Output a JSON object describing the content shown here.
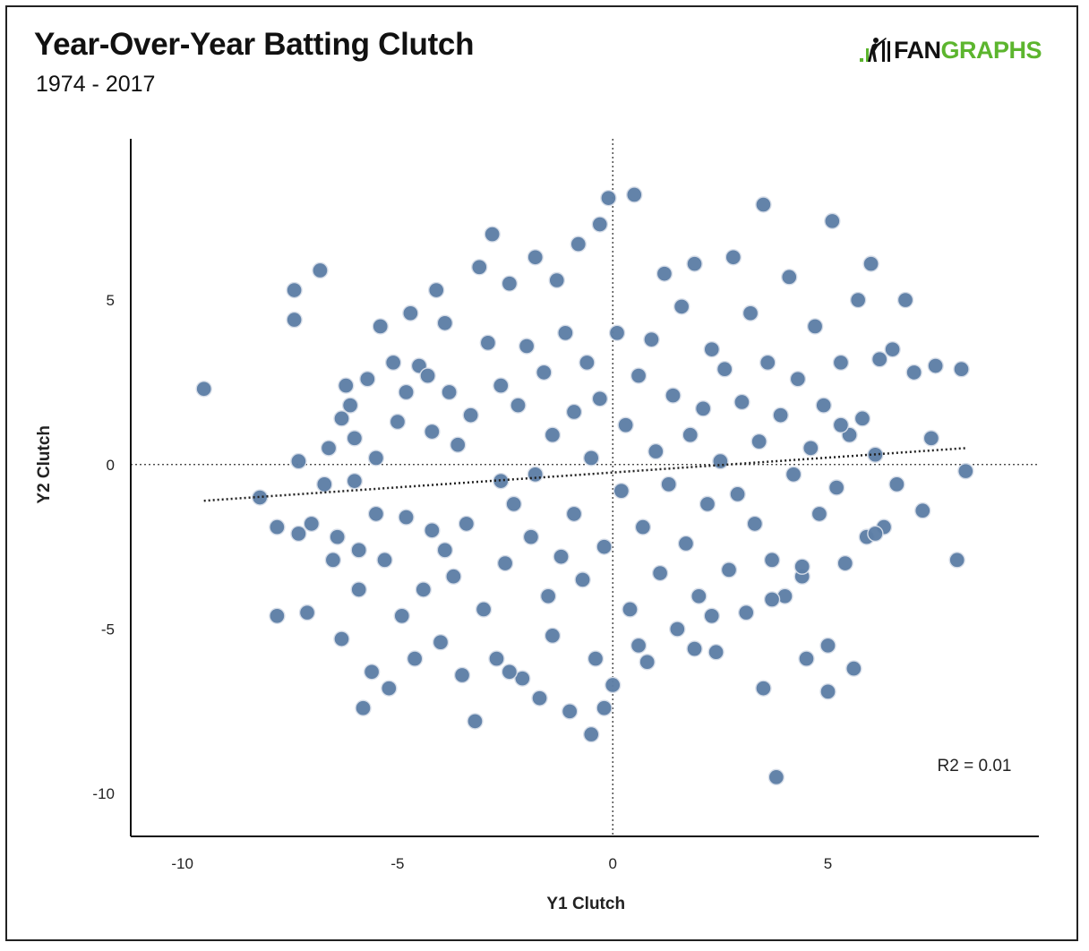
{
  "header": {
    "title": "Year-Over-Year Batting Clutch",
    "subtitle": "1974 - 2017",
    "logo_part1": "FAN",
    "logo_part2": "GRAPHS"
  },
  "colors": {
    "point_fill": "#5e7fa6",
    "point_stroke": "#d6dde8",
    "logo_green": "#5cb52e"
  },
  "chart_data": {
    "type": "scatter",
    "title": "Year-Over-Year Batting Clutch",
    "subtitle": "1974 - 2017",
    "xlabel": "Y1 Clutch",
    "ylabel": "Y2 Clutch",
    "xlim": [
      -11.2,
      9.9
    ],
    "ylim": [
      -11.3,
      9.9
    ],
    "xticks": [
      -10,
      -5,
      0,
      5
    ],
    "yticks": [
      5,
      0,
      -5,
      -10
    ],
    "annotation": "R2 = 0.01",
    "trendline": {
      "x": [
        -9.5,
        8.2
      ],
      "y": [
        -1.1,
        0.5
      ]
    },
    "grid": false,
    "series": [
      {
        "points": [
          [
            -9.5,
            2.3
          ],
          [
            -8.2,
            -1.0
          ],
          [
            -7.8,
            -4.6
          ],
          [
            -7.8,
            -1.9
          ],
          [
            -7.4,
            5.3
          ],
          [
            -7.4,
            4.4
          ],
          [
            -7.3,
            0.1
          ],
          [
            -7.3,
            -2.1
          ],
          [
            -7.1,
            -4.5
          ],
          [
            -7.0,
            -1.8
          ],
          [
            -6.8,
            5.9
          ],
          [
            -6.7,
            -0.6
          ],
          [
            -6.5,
            -2.9
          ],
          [
            -6.4,
            -2.2
          ],
          [
            -6.3,
            1.4
          ],
          [
            -6.3,
            -5.3
          ],
          [
            -6.2,
            2.4
          ],
          [
            -6.1,
            1.8
          ],
          [
            -6.0,
            0.8
          ],
          [
            -5.9,
            -2.6
          ],
          [
            -5.9,
            -3.8
          ],
          [
            -5.8,
            -7.4
          ],
          [
            -5.7,
            2.6
          ],
          [
            -5.6,
            -6.3
          ],
          [
            -5.5,
            -1.5
          ],
          [
            -5.4,
            4.2
          ],
          [
            -5.3,
            -2.9
          ],
          [
            -5.2,
            -6.8
          ],
          [
            -5.1,
            3.1
          ],
          [
            -5.0,
            1.3
          ],
          [
            -4.9,
            -4.6
          ],
          [
            -4.8,
            2.2
          ],
          [
            -4.7,
            4.6
          ],
          [
            -4.6,
            -5.9
          ],
          [
            -4.5,
            3.0
          ],
          [
            -4.4,
            -3.8
          ],
          [
            -4.3,
            2.7
          ],
          [
            -4.2,
            1.0
          ],
          [
            -4.2,
            -2.0
          ],
          [
            -4.1,
            5.3
          ],
          [
            -4.0,
            -5.4
          ],
          [
            -3.9,
            4.3
          ],
          [
            -3.8,
            2.2
          ],
          [
            -3.7,
            -3.4
          ],
          [
            -3.6,
            0.6
          ],
          [
            -3.5,
            -6.4
          ],
          [
            -3.4,
            -1.8
          ],
          [
            -3.3,
            1.5
          ],
          [
            -3.2,
            -7.8
          ],
          [
            -3.1,
            6.0
          ],
          [
            -3.0,
            -4.4
          ],
          [
            -2.9,
            3.7
          ],
          [
            -2.8,
            7.0
          ],
          [
            -2.7,
            -5.9
          ],
          [
            -2.6,
            -0.5
          ],
          [
            -2.6,
            2.4
          ],
          [
            -2.5,
            -3.0
          ],
          [
            -2.4,
            5.5
          ],
          [
            -2.3,
            -1.2
          ],
          [
            -2.2,
            1.8
          ],
          [
            -2.1,
            -6.5
          ],
          [
            -2.0,
            3.6
          ],
          [
            -1.9,
            -2.2
          ],
          [
            -1.8,
            6.3
          ],
          [
            -1.8,
            -0.3
          ],
          [
            -1.7,
            -7.1
          ],
          [
            -1.6,
            2.8
          ],
          [
            -1.5,
            -4.0
          ],
          [
            -1.4,
            0.9
          ],
          [
            -1.3,
            5.6
          ],
          [
            -1.2,
            -2.8
          ],
          [
            -1.1,
            4.0
          ],
          [
            -1.0,
            -7.5
          ],
          [
            -0.9,
            1.6
          ],
          [
            -0.9,
            -1.5
          ],
          [
            -0.8,
            6.7
          ],
          [
            -0.7,
            -3.5
          ],
          [
            -0.6,
            3.1
          ],
          [
            -0.5,
            -8.2
          ],
          [
            -0.5,
            0.2
          ],
          [
            -0.4,
            -5.9
          ],
          [
            -0.3,
            7.3
          ],
          [
            -0.3,
            2.0
          ],
          [
            -0.2,
            -2.5
          ],
          [
            -0.1,
            8.1
          ],
          [
            0.0,
            -6.7
          ],
          [
            0.1,
            4.0
          ],
          [
            0.2,
            -0.8
          ],
          [
            0.3,
            1.2
          ],
          [
            0.4,
            -4.4
          ],
          [
            0.5,
            8.2
          ],
          [
            0.6,
            2.7
          ],
          [
            0.7,
            -1.9
          ],
          [
            0.8,
            -6.0
          ],
          [
            0.9,
            3.8
          ],
          [
            1.0,
            0.4
          ],
          [
            1.1,
            -3.3
          ],
          [
            1.2,
            5.8
          ],
          [
            1.3,
            -0.6
          ],
          [
            1.4,
            2.1
          ],
          [
            1.5,
            -5.0
          ],
          [
            1.6,
            4.8
          ],
          [
            1.7,
            -2.4
          ],
          [
            1.8,
            0.9
          ],
          [
            1.9,
            6.1
          ],
          [
            2.0,
            -4.0
          ],
          [
            2.1,
            1.7
          ],
          [
            2.2,
            -1.2
          ],
          [
            2.3,
            3.5
          ],
          [
            2.4,
            -5.7
          ],
          [
            2.5,
            0.1
          ],
          [
            2.6,
            2.9
          ],
          [
            2.7,
            -3.2
          ],
          [
            2.8,
            6.3
          ],
          [
            2.9,
            -0.9
          ],
          [
            3.0,
            1.9
          ],
          [
            3.1,
            -4.5
          ],
          [
            3.2,
            4.6
          ],
          [
            3.3,
            -1.8
          ],
          [
            3.4,
            0.7
          ],
          [
            3.5,
            7.9
          ],
          [
            3.5,
            -6.8
          ],
          [
            3.6,
            3.1
          ],
          [
            3.7,
            -2.9
          ],
          [
            3.8,
            -9.5
          ],
          [
            3.9,
            1.5
          ],
          [
            4.0,
            -4.0
          ],
          [
            4.1,
            5.7
          ],
          [
            4.2,
            -0.3
          ],
          [
            4.3,
            2.6
          ],
          [
            4.4,
            -3.4
          ],
          [
            4.5,
            -5.9
          ],
          [
            4.6,
            0.5
          ],
          [
            4.7,
            4.2
          ],
          [
            4.8,
            -1.5
          ],
          [
            4.9,
            1.8
          ],
          [
            5.0,
            -6.9
          ],
          [
            5.1,
            7.4
          ],
          [
            5.2,
            -0.7
          ],
          [
            5.3,
            3.1
          ],
          [
            5.4,
            -3.0
          ],
          [
            5.5,
            0.9
          ],
          [
            5.6,
            -6.2
          ],
          [
            5.7,
            5.0
          ],
          [
            5.8,
            1.4
          ],
          [
            5.9,
            -2.2
          ],
          [
            6.0,
            6.1
          ],
          [
            6.1,
            0.3
          ],
          [
            6.2,
            3.2
          ],
          [
            6.3,
            -1.9
          ],
          [
            6.5,
            3.5
          ],
          [
            6.6,
            -0.6
          ],
          [
            6.8,
            5.0
          ],
          [
            7.0,
            2.8
          ],
          [
            7.2,
            -1.4
          ],
          [
            7.4,
            0.8
          ],
          [
            7.5,
            3.0
          ],
          [
            8.0,
            -2.9
          ],
          [
            8.1,
            2.9
          ],
          [
            8.2,
            -0.2
          ],
          [
            5.0,
            -5.5
          ],
          [
            4.4,
            -3.1
          ],
          [
            3.7,
            -4.1
          ],
          [
            6.1,
            -2.1
          ],
          [
            5.3,
            1.2
          ],
          [
            2.3,
            -4.6
          ],
          [
            1.9,
            -5.6
          ],
          [
            -3.9,
            -2.6
          ],
          [
            -4.8,
            -1.6
          ],
          [
            -5.5,
            0.2
          ],
          [
            -6.0,
            -0.5
          ],
          [
            -6.6,
            0.5
          ],
          [
            -2.4,
            -6.3
          ],
          [
            -1.4,
            -5.2
          ],
          [
            -0.2,
            -7.4
          ],
          [
            0.6,
            -5.5
          ]
        ]
      }
    ]
  }
}
